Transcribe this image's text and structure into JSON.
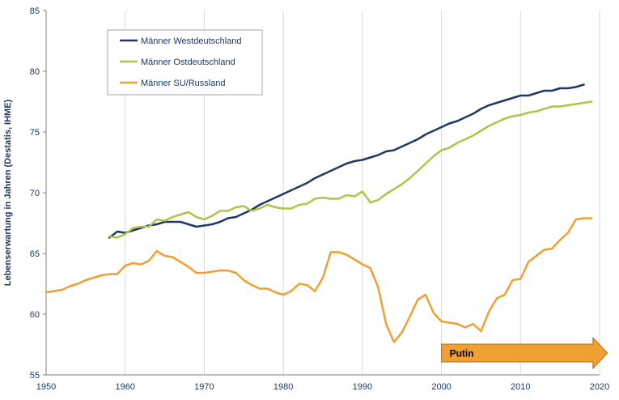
{
  "chart_data": {
    "type": "line",
    "title": "",
    "xlabel": "",
    "ylabel": "Lebenserwartung in Jahren (Destatis, IHME)",
    "xlim": [
      1950,
      2020
    ],
    "ylim": [
      55,
      85
    ],
    "x_ticks": [
      "1950",
      "1960",
      "1970",
      "1980",
      "1990",
      "2000",
      "2010",
      "2020"
    ],
    "y_ticks": [
      "55",
      "60",
      "65",
      "70",
      "75",
      "80",
      "85"
    ],
    "grid": "vertical",
    "legend_position": "top-left",
    "series": [
      {
        "name": "Männer Westdeutschland",
        "color": "#1f3864",
        "points": [
          [
            1958,
            66.3
          ],
          [
            1959,
            66.8
          ],
          [
            1960,
            66.7
          ],
          [
            1961,
            66.9
          ],
          [
            1962,
            67.1
          ],
          [
            1963,
            67.3
          ],
          [
            1964,
            67.4
          ],
          [
            1965,
            67.6
          ],
          [
            1966,
            67.6
          ],
          [
            1967,
            67.6
          ],
          [
            1968,
            67.4
          ],
          [
            1969,
            67.2
          ],
          [
            1970,
            67.3
          ],
          [
            1971,
            67.4
          ],
          [
            1972,
            67.6
          ],
          [
            1973,
            67.9
          ],
          [
            1974,
            68.0
          ],
          [
            1975,
            68.3
          ],
          [
            1976,
            68.6
          ],
          [
            1977,
            69.0
          ],
          [
            1978,
            69.3
          ],
          [
            1979,
            69.6
          ],
          [
            1980,
            69.9
          ],
          [
            1981,
            70.2
          ],
          [
            1982,
            70.5
          ],
          [
            1983,
            70.8
          ],
          [
            1984,
            71.2
          ],
          [
            1985,
            71.5
          ],
          [
            1986,
            71.8
          ],
          [
            1987,
            72.1
          ],
          [
            1988,
            72.4
          ],
          [
            1989,
            72.6
          ],
          [
            1990,
            72.7
          ],
          [
            1991,
            72.9
          ],
          [
            1992,
            73.1
          ],
          [
            1993,
            73.4
          ],
          [
            1994,
            73.5
          ],
          [
            1995,
            73.8
          ],
          [
            1996,
            74.1
          ],
          [
            1997,
            74.4
          ],
          [
            1998,
            74.8
          ],
          [
            1999,
            75.1
          ],
          [
            2000,
            75.4
          ],
          [
            2001,
            75.7
          ],
          [
            2002,
            75.9
          ],
          [
            2003,
            76.2
          ],
          [
            2004,
            76.5
          ],
          [
            2005,
            76.9
          ],
          [
            2006,
            77.2
          ],
          [
            2007,
            77.4
          ],
          [
            2008,
            77.6
          ],
          [
            2009,
            77.8
          ],
          [
            2010,
            78.0
          ],
          [
            2011,
            78.0
          ],
          [
            2012,
            78.2
          ],
          [
            2013,
            78.4
          ],
          [
            2014,
            78.4
          ],
          [
            2015,
            78.6
          ],
          [
            2016,
            78.6
          ],
          [
            2017,
            78.7
          ],
          [
            2018,
            78.9
          ]
        ]
      },
      {
        "name": "Männer Ostdeutschland",
        "color": "#a9c84a",
        "points": [
          [
            1958,
            66.4
          ],
          [
            1959,
            66.3
          ],
          [
            1960,
            66.6
          ],
          [
            1961,
            67.1
          ],
          [
            1962,
            67.2
          ],
          [
            1963,
            67.2
          ],
          [
            1964,
            67.8
          ],
          [
            1965,
            67.7
          ],
          [
            1966,
            68.0
          ],
          [
            1967,
            68.2
          ],
          [
            1968,
            68.4
          ],
          [
            1969,
            68.0
          ],
          [
            1970,
            67.8
          ],
          [
            1971,
            68.1
          ],
          [
            1972,
            68.5
          ],
          [
            1973,
            68.5
          ],
          [
            1974,
            68.8
          ],
          [
            1975,
            68.9
          ],
          [
            1976,
            68.5
          ],
          [
            1977,
            68.7
          ],
          [
            1978,
            69.0
          ],
          [
            1979,
            68.8
          ],
          [
            1980,
            68.7
          ],
          [
            1981,
            68.7
          ],
          [
            1982,
            69.0
          ],
          [
            1983,
            69.1
          ],
          [
            1984,
            69.5
          ],
          [
            1985,
            69.6
          ],
          [
            1986,
            69.5
          ],
          [
            1987,
            69.5
          ],
          [
            1988,
            69.8
          ],
          [
            1989,
            69.7
          ],
          [
            1990,
            70.1
          ],
          [
            1991,
            69.2
          ],
          [
            1992,
            69.4
          ],
          [
            1993,
            69.9
          ],
          [
            1994,
            70.3
          ],
          [
            1995,
            70.7
          ],
          [
            1996,
            71.2
          ],
          [
            1997,
            71.8
          ],
          [
            1998,
            72.4
          ],
          [
            1999,
            73.0
          ],
          [
            2000,
            73.5
          ],
          [
            2001,
            73.7
          ],
          [
            2002,
            74.1
          ],
          [
            2003,
            74.4
          ],
          [
            2004,
            74.7
          ],
          [
            2005,
            75.1
          ],
          [
            2006,
            75.5
          ],
          [
            2007,
            75.8
          ],
          [
            2008,
            76.1
          ],
          [
            2009,
            76.3
          ],
          [
            2010,
            76.4
          ],
          [
            2011,
            76.6
          ],
          [
            2012,
            76.7
          ],
          [
            2013,
            76.9
          ],
          [
            2014,
            77.1
          ],
          [
            2015,
            77.1
          ],
          [
            2016,
            77.2
          ],
          [
            2017,
            77.3
          ],
          [
            2018,
            77.4
          ],
          [
            2019,
            77.5
          ]
        ]
      },
      {
        "name": "Männer SU/Russland",
        "color": "#f0a032",
        "points": [
          [
            1950,
            61.8
          ],
          [
            1951,
            61.9
          ],
          [
            1952,
            62.0
          ],
          [
            1953,
            62.3
          ],
          [
            1954,
            62.5
          ],
          [
            1955,
            62.8
          ],
          [
            1956,
            63.0
          ],
          [
            1957,
            63.2
          ],
          [
            1958,
            63.3
          ],
          [
            1959,
            63.3
          ],
          [
            1960,
            64.0
          ],
          [
            1961,
            64.2
          ],
          [
            1962,
            64.1
          ],
          [
            1963,
            64.4
          ],
          [
            1964,
            65.2
          ],
          [
            1965,
            64.8
          ],
          [
            1966,
            64.7
          ],
          [
            1967,
            64.3
          ],
          [
            1968,
            63.9
          ],
          [
            1969,
            63.4
          ],
          [
            1970,
            63.4
          ],
          [
            1971,
            63.5
          ],
          [
            1972,
            63.6
          ],
          [
            1973,
            63.6
          ],
          [
            1974,
            63.4
          ],
          [
            1975,
            62.8
          ],
          [
            1976,
            62.4
          ],
          [
            1977,
            62.1
          ],
          [
            1978,
            62.1
          ],
          [
            1979,
            61.8
          ],
          [
            1980,
            61.6
          ],
          [
            1981,
            61.9
          ],
          [
            1982,
            62.5
          ],
          [
            1983,
            62.4
          ],
          [
            1984,
            61.9
          ],
          [
            1985,
            63.0
          ],
          [
            1986,
            65.1
          ],
          [
            1987,
            65.1
          ],
          [
            1988,
            64.9
          ],
          [
            1989,
            64.5
          ],
          [
            1990,
            64.1
          ],
          [
            1991,
            63.8
          ],
          [
            1992,
            62.2
          ],
          [
            1993,
            59.2
          ],
          [
            1994,
            57.7
          ],
          [
            1995,
            58.5
          ],
          [
            1996,
            59.8
          ],
          [
            1997,
            61.2
          ],
          [
            1998,
            61.6
          ],
          [
            1999,
            60.1
          ],
          [
            2000,
            59.4
          ],
          [
            2001,
            59.3
          ],
          [
            2002,
            59.2
          ],
          [
            2003,
            58.9
          ],
          [
            2004,
            59.2
          ],
          [
            2005,
            58.6
          ],
          [
            2006,
            60.2
          ],
          [
            2007,
            61.3
          ],
          [
            2008,
            61.6
          ],
          [
            2009,
            62.8
          ],
          [
            2010,
            62.9
          ],
          [
            2011,
            64.3
          ],
          [
            2012,
            64.8
          ],
          [
            2013,
            65.3
          ],
          [
            2014,
            65.4
          ],
          [
            2015,
            66.1
          ],
          [
            2016,
            66.7
          ],
          [
            2017,
            67.8
          ],
          [
            2018,
            67.9
          ],
          [
            2019,
            67.9
          ]
        ]
      }
    ],
    "annotations": [
      {
        "text": "Putin",
        "type": "arrow",
        "x_start": 2000,
        "x_end": 2021,
        "y": 56.8,
        "color": "#f0a032"
      }
    ]
  }
}
